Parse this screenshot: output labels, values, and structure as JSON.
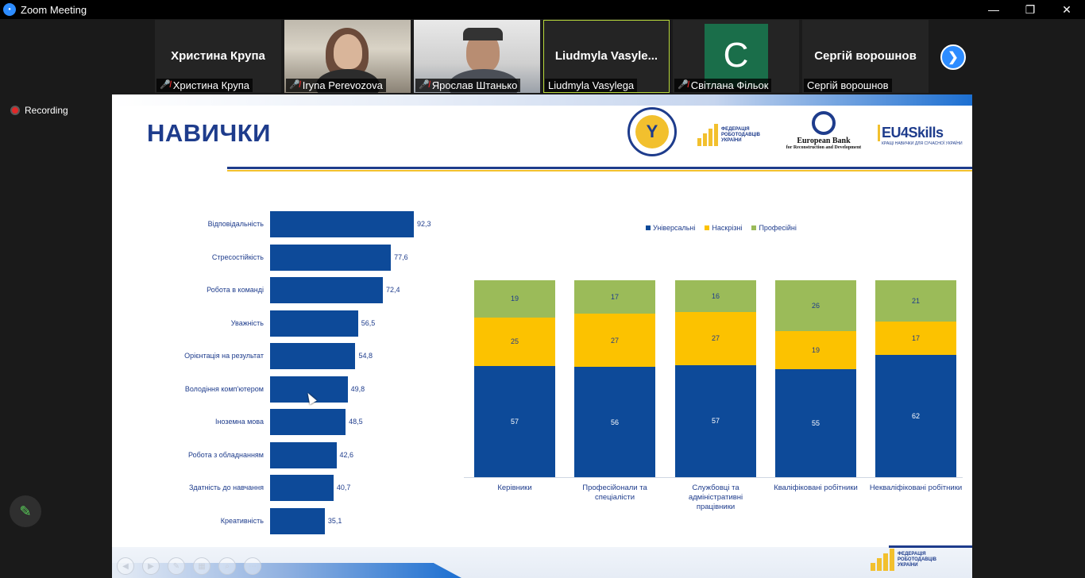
{
  "window": {
    "title": "Zoom Meeting",
    "icon": "zoom-icon",
    "controls": [
      "—",
      "❐",
      "✕"
    ]
  },
  "participants": [
    {
      "display": "Христина Крупа",
      "name": "Христина Крупа",
      "muted": true,
      "video": false
    },
    {
      "display": "",
      "name": "Iryna Perevozova",
      "muted": true,
      "video": true
    },
    {
      "display": "",
      "name": "Ярослав Штанько",
      "muted": true,
      "video": true
    },
    {
      "display": "Liudmyla  Vasyle...",
      "name": "Liudmyla Vasylega",
      "muted": false,
      "video": false,
      "active": true
    },
    {
      "display": "C",
      "name": "Світлана Фільок",
      "muted": true,
      "video": false,
      "avatar": true
    },
    {
      "display": "Сергій ворошнов",
      "name": "Сергій ворошнов",
      "muted": false,
      "video": false
    }
  ],
  "recording": {
    "label": "Recording"
  },
  "slide": {
    "title": "НАВИЧКИ",
    "logos": {
      "employment_service": "Державна служба зайнятості",
      "federation": [
        "ФЕДЕРАЦІЯ",
        "РОБОТОДАВЦІВ",
        "УКРАЇНИ"
      ],
      "ebrd_1": "European Bank",
      "ebrd_2": "for Reconstruction and Development",
      "eu4skills_1": "EU4Skills",
      "eu4skills_2": "КРАЩІ НАВИЧКИ ДЛЯ СУЧАСНОЇ УКРАЇНИ"
    }
  },
  "chart_data": [
    {
      "type": "bar",
      "orientation": "horizontal",
      "categories": [
        "Відповідальність",
        "Стресостійкість",
        "Робота в команді",
        "Уважність",
        "Орієнтація на результат",
        "Володіння комп'ютером",
        "Іноземна мова",
        "Робота з обладнанням",
        "Здатність до навчання",
        "Креативність"
      ],
      "value_labels": [
        "92,3",
        "77,6",
        "72,4",
        "56,5",
        "54,8",
        "49,8",
        "48,5",
        "42,6",
        "40,7",
        "35,1"
      ],
      "values": [
        92.3,
        77.6,
        72.4,
        56.5,
        54.8,
        49.8,
        48.5,
        42.6,
        40.7,
        35.1
      ],
      "color": "#0d4a99"
    },
    {
      "type": "bar",
      "stacked": true,
      "legend": "top",
      "categories": [
        [
          "Керівники"
        ],
        [
          "Професійонали та спеціалісти"
        ],
        [
          "Службовці та адміністративні",
          "працівники"
        ],
        [
          "Кваліфіковані робітники"
        ],
        [
          "Некваліфіковані робітники"
        ]
      ],
      "series": [
        {
          "name": "Універсальні",
          "color": "#0d4a99",
          "values": [
            57,
            56,
            57,
            55,
            62
          ]
        },
        {
          "name": "Наскрізні",
          "color": "#fcc200",
          "values": [
            25,
            27,
            27,
            19,
            17
          ]
        },
        {
          "name": "Професійні",
          "color": "#9bbb59",
          "values": [
            19,
            17,
            16,
            26,
            21
          ]
        }
      ]
    }
  ]
}
